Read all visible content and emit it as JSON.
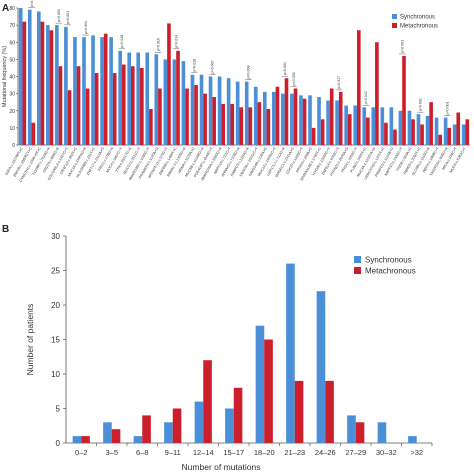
{
  "panels": {
    "a": {
      "letter": "A"
    },
    "b": {
      "letter": "B"
    }
  },
  "colors": {
    "synchronous": "#4a8fd8",
    "metachronous": "#cc1f2c",
    "axis": "#555555"
  },
  "chart_data": [
    {
      "type": "bar",
      "panel": "A",
      "ylabel": "Mutational frequency (%)",
      "ylim": [
        0,
        80
      ],
      "yticks": [
        0,
        10,
        20,
        30,
        40,
        50,
        60,
        70,
        80
      ],
      "grid": false,
      "legend_position": "top-right",
      "categories": [
        "SSFA:c.152786T>C",
        "ZNF28:c.188082T>C",
        "DYNC2H1:c.1096+6T>C",
        "FCGBP:c.7024G>A",
        "OR2T4:c.856G>A",
        "GOLGA6L4:c.1327C>T",
        "OR4C12:c.802T>C",
        "MUC16:c.33451G>A",
        "HLA-DRB5:c.221T>C",
        "ZNF717:c.2113A>G",
        "FRG1:c.178G>A",
        "MUC4:c.3407C>T",
        "TTN:c.25217G>A",
        "MUC17:c.3511C>T",
        "ANKRD36C:c.1090C>T",
        "PRAMEF4:c.1120A>G",
        "KRTAP4-11:c.179C>T",
        "ZNF658:c.1498T>C",
        "RBMXL3:c.1325G>A",
        "HRNR:c.3139A>G",
        "MUC5B:c.10166G>A",
        "PDE4DIP:c.4544C>T",
        "ANKRD30A:c.3260G>A",
        "NBPF14:c.727C>T",
        "AHNAK2:c.7109G>A",
        "PABPC3:c.1250G>A",
        "OBSCN:c.10211C>T",
        "FAM104B:c.226A>G",
        "MUC12:c.14051C>T",
        "USP17L7:c.712G>A",
        "MAGEC1:c.2311A>G",
        "CDC27:c.1409C>T",
        "PRSS3:c.299A>G",
        "SPATA31A6:c.1790T>C",
        "HYDIN:c.12224C>T",
        "ZNF814:c.1042C>T",
        "PTPN21:c.2045A>G",
        "PRG4:c.3209C>T",
        "PLIN4:c.2405T>C",
        "MUC3A:c.12167A>G",
        "LRRC37A3:c.1370T>C",
        "FRMPD3:c.1124A>G",
        "NBPF10:c.2432C>T",
        "PSG8:c.593A>G",
        "RBM25:c.2093T>C",
        "SLC9B1:c.1115G>A",
        "NEFH:c.1868C>T",
        "TAS2R19:c.905G>A",
        "MICA:c.934C>T",
        "MUC6:c.5282C>T"
      ],
      "series": [
        {
          "name": "Synchronous",
          "values": [
            80,
            79,
            78,
            70,
            70,
            69,
            63,
            63,
            64,
            63,
            63,
            55,
            54,
            54,
            54,
            53,
            50,
            50,
            49,
            41,
            41,
            40,
            40,
            39,
            37,
            37,
            34,
            31,
            31,
            30,
            30,
            29,
            29,
            28,
            26,
            26,
            23,
            23,
            22,
            22,
            22,
            22,
            20,
            20,
            18,
            17,
            16,
            16,
            12,
            12
          ]
        },
        {
          "name": "Metachronous",
          "values": [
            72,
            13,
            72,
            67,
            46,
            32,
            46,
            33,
            42,
            65,
            42,
            47,
            46,
            45,
            21,
            33,
            71,
            55,
            33,
            35,
            30,
            28,
            24,
            24,
            22,
            22,
            25,
            21,
            34,
            39,
            33,
            27,
            10,
            15,
            33,
            31,
            18,
            67,
            16,
            60,
            13,
            9,
            52,
            15,
            12,
            25,
            6,
            10,
            19,
            15
          ]
        }
      ],
      "annotations": [
        {
          "category_index": 1,
          "text": "p<0.001"
        },
        {
          "category_index": 4,
          "text": "p=0.002"
        },
        {
          "category_index": 5,
          "text": "p<0.001"
        },
        {
          "category_index": 7,
          "text": "p<0.001"
        },
        {
          "category_index": 11,
          "text": "p=0.018"
        },
        {
          "category_index": 15,
          "text": "p=0.016"
        },
        {
          "category_index": 17,
          "text": "p=0.014"
        },
        {
          "category_index": 19,
          "text": "p=0.016"
        },
        {
          "category_index": 21,
          "text": "p=0.007"
        },
        {
          "category_index": 25,
          "text": "p=0.008"
        },
        {
          "category_index": 29,
          "text": "p=0.004"
        },
        {
          "category_index": 30,
          "text": "p=0.035"
        },
        {
          "category_index": 35,
          "text": "p=0.017"
        },
        {
          "category_index": 38,
          "text": "p=0.042"
        },
        {
          "category_index": 42,
          "text": "p<0.001"
        },
        {
          "category_index": 44,
          "text": "p<0.001"
        },
        {
          "category_index": 47,
          "text": "p<0.001"
        }
      ]
    },
    {
      "type": "bar",
      "panel": "B",
      "xlabel": "Number of mutations",
      "ylabel": "Number of patients",
      "ylim": [
        0,
        30
      ],
      "yticks": [
        0,
        5,
        10,
        15,
        20,
        25,
        30
      ],
      "grid": false,
      "legend_position": "top-right",
      "categories": [
        "0–2",
        "3–5",
        "6–8",
        "9–11",
        "12–14",
        "15–17",
        "18–20",
        "21–23",
        "24–26",
        "27–29",
        "30–32",
        ">32"
      ],
      "series": [
        {
          "name": "Synchronous",
          "values": [
            1,
            3,
            1,
            3,
            6,
            5,
            17,
            26,
            22,
            4,
            3,
            1
          ]
        },
        {
          "name": "Metachronous",
          "values": [
            1,
            2,
            4,
            5,
            12,
            8,
            15,
            9,
            9,
            3,
            0,
            0
          ]
        }
      ]
    }
  ]
}
